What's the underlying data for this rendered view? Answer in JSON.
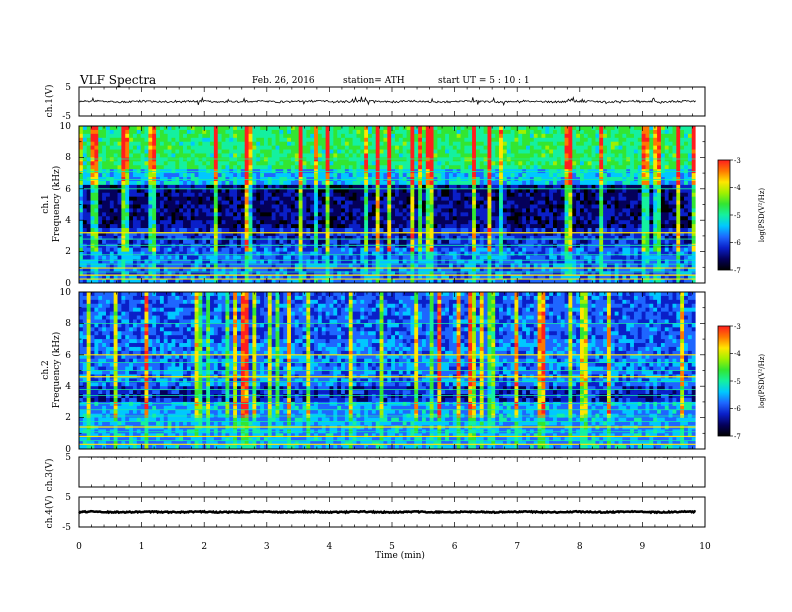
{
  "header": {
    "title": "VLF  Spectra",
    "date": "Feb. 26,  2016",
    "station": "station= ATH",
    "start": "start  UT  =    5  : 10 : 1"
  },
  "chart_data": [
    {
      "id": "ch1-waveform",
      "type": "line",
      "ylabel": "ch.1(V)",
      "ylim": [
        -5,
        5
      ],
      "yticks": [
        5,
        -5
      ],
      "xlim": [
        0,
        10
      ],
      "baseline": 0,
      "noise_amplitude": 0.35,
      "spike_amplitude": 1.4,
      "trace_end": 9.85
    },
    {
      "id": "ch1-spectrogram",
      "type": "heatmap",
      "ylabel": "ch.1",
      "ylabel2": "Frequency  (kHz)",
      "ylim": [
        0,
        10
      ],
      "yticks": [
        0,
        2,
        4,
        6,
        8,
        10
      ],
      "xlim": [
        0,
        10
      ],
      "trace_end": 9.85,
      "colorbar": {
        "label": "log(PSD(V²/Hz)",
        "range": [
          -7,
          -3
        ],
        "ticks": [
          "-3",
          "-4",
          "-5",
          "-6",
          "-7"
        ]
      },
      "lines_khz": [
        0.25,
        0.5,
        0.7,
        0.95,
        1.2,
        1.45,
        1.8,
        2.4,
        2.8,
        3.2,
        6.0,
        6.6,
        7.1,
        7.9
      ],
      "bright_lines_khz": [
        0.25,
        0.5,
        0.95,
        3.2
      ]
    },
    {
      "id": "ch2-spectrogram",
      "type": "heatmap",
      "ylabel": "ch.2",
      "ylabel2": "Frequency  (kHz)",
      "ylim": [
        0,
        10
      ],
      "yticks": [
        0,
        2,
        4,
        6,
        8,
        10
      ],
      "xlim": [
        0,
        10
      ],
      "trace_end": 9.85,
      "colorbar": {
        "label": "log(PSD(V²/Hz)",
        "range": [
          -7,
          -3
        ],
        "ticks": [
          "-3",
          "-4",
          "-5",
          "-6",
          "-7"
        ]
      },
      "lines_khz": [
        0.3,
        0.55,
        0.8,
        1.1,
        1.4,
        1.75,
        2.1,
        2.5,
        2.9,
        3.4,
        3.8,
        4.3,
        4.6,
        5.0,
        5.5,
        6.0,
        8.0
      ],
      "bright_lines_khz": [
        0.3,
        0.8,
        1.4,
        4.6,
        6.0
      ]
    },
    {
      "id": "ch3-waveform",
      "type": "line",
      "ylabel": "ch.3(V)",
      "ylim": [
        -5,
        5
      ],
      "yticks": [
        5
      ],
      "xlim": [
        0,
        10
      ],
      "baseline": 5,
      "noise_amplitude": 0.05,
      "spike_amplitude": 0,
      "trace_end": 9.85
    },
    {
      "id": "ch4-waveform",
      "type": "line",
      "ylabel": "ch.4(V)",
      "ylim": [
        -5,
        5
      ],
      "yticks": [
        5,
        -5
      ],
      "xlim": [
        0,
        10
      ],
      "baseline": 0,
      "noise_amplitude": 0.2,
      "spike_amplitude": 0,
      "trace_end": 9.85
    }
  ],
  "xaxis": {
    "label": "Time  (min)",
    "ticks": [
      "0",
      "1",
      "2",
      "3",
      "4",
      "5",
      "6",
      "7",
      "8",
      "9",
      "10"
    ]
  },
  "colors": {
    "colormap": [
      "#000000",
      "#04005a",
      "#0a1fc8",
      "#1e66ff",
      "#00c8ff",
      "#14f0a0",
      "#32e632",
      "#a0f000",
      "#ffe600",
      "#ff7800",
      "#ff1e1e",
      "#ffffff"
    ],
    "trace": "#000000"
  }
}
